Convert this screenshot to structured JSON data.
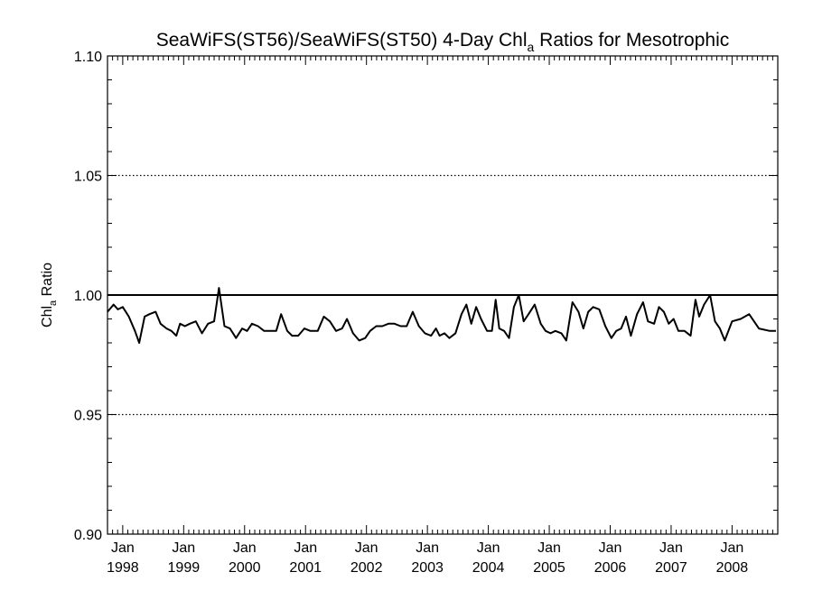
{
  "chart_data": {
    "type": "line",
    "title": {
      "prefix": "SeaWiFS(ST56)/SeaWiFS(ST50) 4-Day Chl",
      "subscript": "a",
      "suffix": " Ratios for Mesotrophic"
    },
    "ylabel": {
      "prefix": "Chl",
      "subscript": "a",
      "suffix": " Ratio"
    },
    "xlabel": "",
    "xlim": [
      1997.75,
      2008.75
    ],
    "ylim": [
      0.9,
      1.1
    ],
    "y_ticks": [
      "0.90",
      "0.95",
      "1.00",
      "1.05",
      "1.10"
    ],
    "y_gridlines": [
      0.95,
      1.05
    ],
    "grid_style": "dotted",
    "reference_line": 1.0,
    "x_tick_labels": [
      {
        "month": "Jan",
        "year": "1998"
      },
      {
        "month": "Jan",
        "year": "1999"
      },
      {
        "month": "Jan",
        "year": "2000"
      },
      {
        "month": "Jan",
        "year": "2001"
      },
      {
        "month": "Jan",
        "year": "2002"
      },
      {
        "month": "Jan",
        "year": "2003"
      },
      {
        "month": "Jan",
        "year": "2004"
      },
      {
        "month": "Jan",
        "year": "2005"
      },
      {
        "month": "Jan",
        "year": "2006"
      },
      {
        "month": "Jan",
        "year": "2007"
      },
      {
        "month": "Jan",
        "year": "2008"
      }
    ],
    "series": [
      {
        "color": "#000000",
        "points": [
          [
            1997.75,
            0.993
          ],
          [
            1997.85,
            0.996
          ],
          [
            1997.92,
            0.994
          ],
          [
            1998.0,
            0.995
          ],
          [
            1998.1,
            0.991
          ],
          [
            1998.2,
            0.985
          ],
          [
            1998.27,
            0.98
          ],
          [
            1998.36,
            0.991
          ],
          [
            1998.44,
            0.992
          ],
          [
            1998.54,
            0.993
          ],
          [
            1998.62,
            0.988
          ],
          [
            1998.72,
            0.986
          ],
          [
            1998.8,
            0.985
          ],
          [
            1998.88,
            0.983
          ],
          [
            1998.94,
            0.988
          ],
          [
            1999.02,
            0.987
          ],
          [
            1999.1,
            0.988
          ],
          [
            1999.2,
            0.989
          ],
          [
            1999.3,
            0.984
          ],
          [
            1999.4,
            0.988
          ],
          [
            1999.5,
            0.989
          ],
          [
            1999.58,
            1.003
          ],
          [
            1999.67,
            0.987
          ],
          [
            1999.76,
            0.986
          ],
          [
            1999.86,
            0.982
          ],
          [
            1999.96,
            0.986
          ],
          [
            2000.04,
            0.985
          ],
          [
            2000.12,
            0.988
          ],
          [
            2000.22,
            0.987
          ],
          [
            2000.32,
            0.985
          ],
          [
            2000.44,
            0.985
          ],
          [
            2000.52,
            0.985
          ],
          [
            2000.6,
            0.992
          ],
          [
            2000.7,
            0.985
          ],
          [
            2000.78,
            0.983
          ],
          [
            2000.88,
            0.983
          ],
          [
            2000.98,
            0.986
          ],
          [
            2001.08,
            0.985
          ],
          [
            2001.2,
            0.985
          ],
          [
            2001.3,
            0.991
          ],
          [
            2001.4,
            0.989
          ],
          [
            2001.5,
            0.985
          ],
          [
            2001.6,
            0.986
          ],
          [
            2001.68,
            0.99
          ],
          [
            2001.78,
            0.984
          ],
          [
            2001.88,
            0.981
          ],
          [
            2001.98,
            0.982
          ],
          [
            2002.06,
            0.985
          ],
          [
            2002.16,
            0.987
          ],
          [
            2002.26,
            0.987
          ],
          [
            2002.36,
            0.988
          ],
          [
            2002.46,
            0.988
          ],
          [
            2002.56,
            0.987
          ],
          [
            2002.66,
            0.987
          ],
          [
            2002.76,
            0.993
          ],
          [
            2002.86,
            0.987
          ],
          [
            2002.96,
            0.984
          ],
          [
            2003.06,
            0.983
          ],
          [
            2003.14,
            0.986
          ],
          [
            2003.2,
            0.983
          ],
          [
            2003.28,
            0.984
          ],
          [
            2003.36,
            0.982
          ],
          [
            2003.46,
            0.984
          ],
          [
            2003.56,
            0.992
          ],
          [
            2003.64,
            0.996
          ],
          [
            2003.72,
            0.988
          ],
          [
            2003.8,
            0.995
          ],
          [
            2003.88,
            0.99
          ],
          [
            2003.98,
            0.985
          ],
          [
            2004.06,
            0.985
          ],
          [
            2004.12,
            0.998
          ],
          [
            2004.18,
            0.986
          ],
          [
            2004.26,
            0.985
          ],
          [
            2004.34,
            0.982
          ],
          [
            2004.42,
            0.995
          ],
          [
            2004.5,
            1.0
          ],
          [
            2004.58,
            0.989
          ],
          [
            2004.66,
            0.992
          ],
          [
            2004.76,
            0.996
          ],
          [
            2004.86,
            0.988
          ],
          [
            2004.94,
            0.985
          ],
          [
            2005.02,
            0.984
          ],
          [
            2005.1,
            0.985
          ],
          [
            2005.2,
            0.984
          ],
          [
            2005.28,
            0.981
          ],
          [
            2005.38,
            0.997
          ],
          [
            2005.48,
            0.993
          ],
          [
            2005.56,
            0.986
          ],
          [
            2005.64,
            0.993
          ],
          [
            2005.72,
            0.995
          ],
          [
            2005.82,
            0.994
          ],
          [
            2005.92,
            0.987
          ],
          [
            2006.02,
            0.982
          ],
          [
            2006.1,
            0.985
          ],
          [
            2006.18,
            0.986
          ],
          [
            2006.26,
            0.991
          ],
          [
            2006.34,
            0.983
          ],
          [
            2006.44,
            0.992
          ],
          [
            2006.54,
            0.997
          ],
          [
            2006.62,
            0.989
          ],
          [
            2006.72,
            0.988
          ],
          [
            2006.8,
            0.995
          ],
          [
            2006.88,
            0.993
          ],
          [
            2006.96,
            0.988
          ],
          [
            2007.04,
            0.99
          ],
          [
            2007.12,
            0.985
          ],
          [
            2007.22,
            0.985
          ],
          [
            2007.32,
            0.983
          ],
          [
            2007.4,
            0.998
          ],
          [
            2007.46,
            0.991
          ],
          [
            2007.54,
            0.996
          ],
          [
            2007.64,
            1.0
          ],
          [
            2007.72,
            0.989
          ],
          [
            2007.8,
            0.986
          ],
          [
            2007.88,
            0.981
          ],
          [
            2008.0,
            0.989
          ],
          [
            2008.14,
            0.99
          ],
          [
            2008.28,
            0.992
          ],
          [
            2008.44,
            0.986
          ],
          [
            2008.62,
            0.985
          ],
          [
            2008.72,
            0.985
          ]
        ]
      }
    ]
  }
}
